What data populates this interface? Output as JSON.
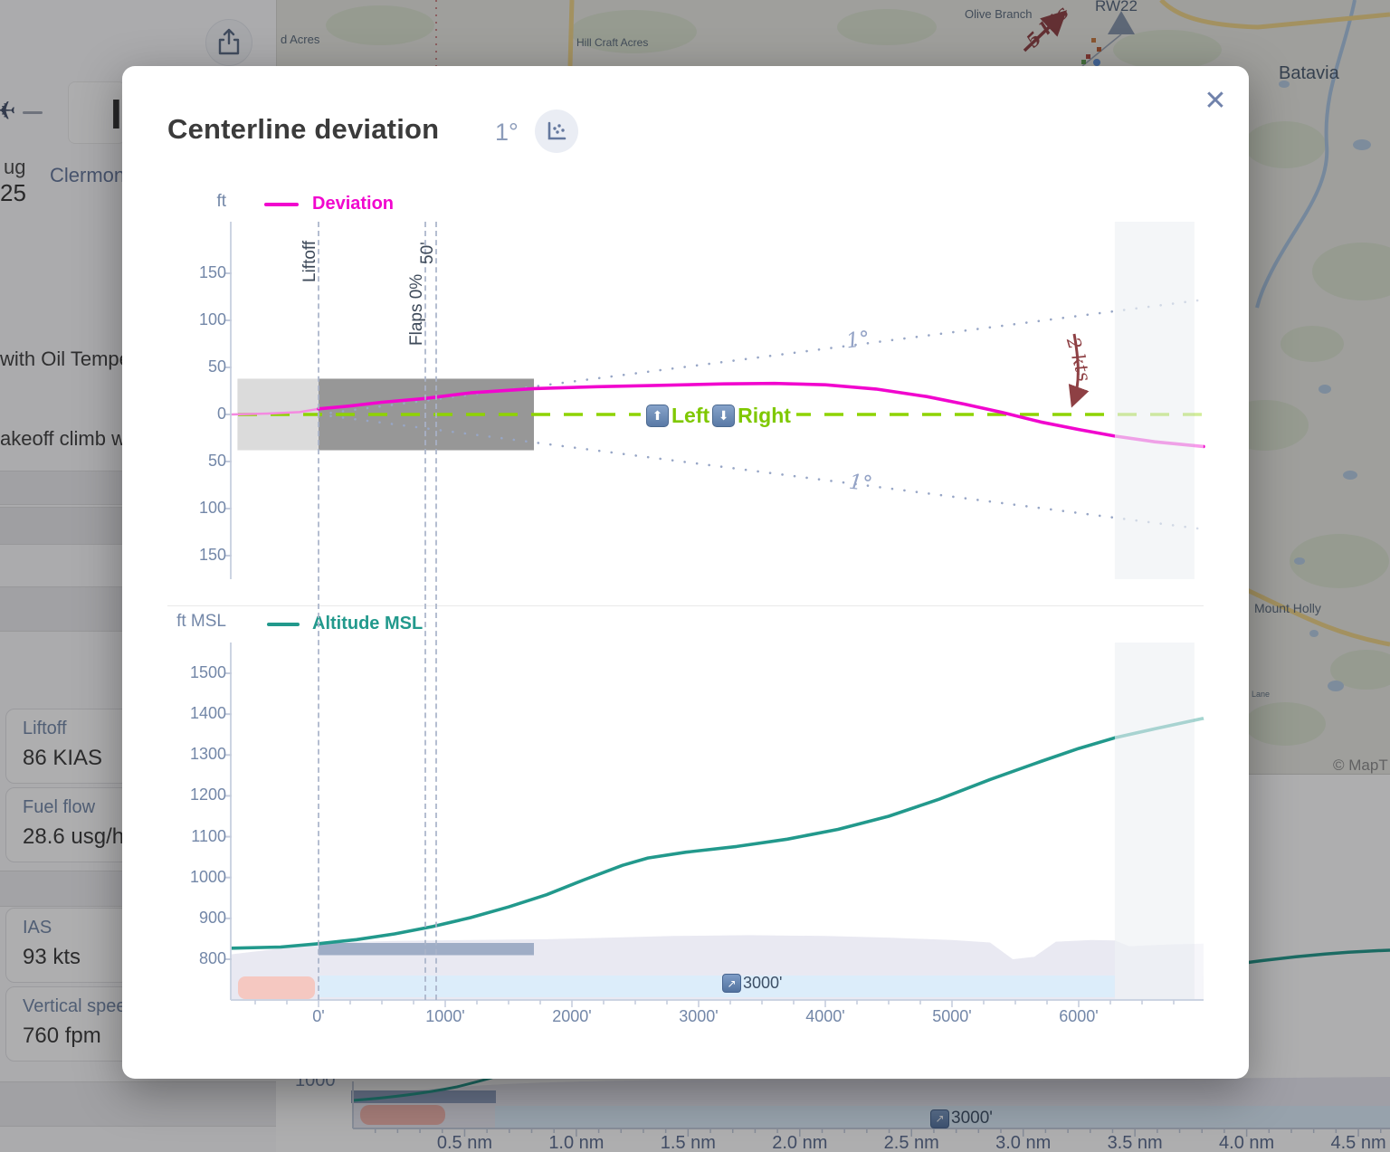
{
  "icons": {
    "close": "✕",
    "up": "⬆",
    "down": "⬇",
    "ne": "↗",
    "plane": "✈",
    "share": "share-up-icon",
    "scatter": "scatter-plot-icon"
  },
  "modal": {
    "title": "Centerline deviation",
    "angle": "1°"
  },
  "chart_data": [
    {
      "id": "centerline-deviation",
      "type": "line",
      "title": "Deviation",
      "ylabel": "ft",
      "yticks": [
        "150",
        "100",
        "50",
        "0",
        "50",
        "100",
        "150"
      ],
      "ytick_values": [
        150,
        100,
        50,
        0,
        -50,
        -100,
        -150
      ],
      "ylim": [
        -175,
        205
      ],
      "xlim_ft": [
        -693,
        6985
      ],
      "grid": false,
      "legend_position": "top-left",
      "series": [
        {
          "name": "Deviation",
          "color": "#f106ce",
          "points": [
            [
              -693,
              0
            ],
            [
              -400,
              1
            ],
            [
              -150,
              2.5
            ],
            [
              0,
              6
            ],
            [
              250,
              9
            ],
            [
              500,
              13
            ],
            [
              843,
              17
            ],
            [
              1200,
              23
            ],
            [
              1700,
              27.5
            ],
            [
              2200,
              29.5
            ],
            [
              2700,
              31
            ],
            [
              3200,
              32.5
            ],
            [
              3600,
              33
            ],
            [
              4000,
              31.5
            ],
            [
              4400,
              27
            ],
            [
              4800,
              19
            ],
            [
              5100,
              11
            ],
            [
              5400,
              2
            ],
            [
              5700,
              -8
            ],
            [
              6000,
              -16
            ],
            [
              6285,
              -23
            ],
            [
              6600,
              -29
            ],
            [
              6985,
              -34
            ]
          ]
        }
      ],
      "centerline": {
        "color": "#8ed300",
        "left_label": "Left",
        "right_label": "Right"
      },
      "cone_deg": 1,
      "cone_label": "1°",
      "runway": {
        "start_ft": -640,
        "liftoff_ft": 0,
        "end_ft": 1700,
        "half_width_ft": 38
      },
      "markers": [
        {
          "label": "Liftoff",
          "x_ft": 0
        },
        {
          "label": "Flaps 0%",
          "x_ft": 843
        },
        {
          "label": "50'",
          "x_ft": 929
        }
      ],
      "wind_annotation": "2 kts",
      "fade_start_ft": 6285
    },
    {
      "id": "altitude-msl",
      "type": "line",
      "title": "Altitude MSL",
      "ylabel": "ft MSL",
      "yticks": [
        "1500",
        "1400",
        "1300",
        "1200",
        "1100",
        "1000",
        "900",
        "800"
      ],
      "ytick_values": [
        1500,
        1400,
        1300,
        1200,
        1100,
        1000,
        900,
        800
      ],
      "ylim": [
        702,
        1575
      ],
      "xticks": [
        "0'",
        "1000'",
        "2000'",
        "3000'",
        "4000'",
        "5000'",
        "6000'"
      ],
      "xtick_values": [
        0,
        1000,
        2000,
        3000,
        4000,
        5000,
        6000
      ],
      "series": [
        {
          "name": "Altitude MSL",
          "color": "#22998c",
          "points": [
            [
              -693,
              827
            ],
            [
              -300,
              830
            ],
            [
              0,
              838
            ],
            [
              300,
              848
            ],
            [
              600,
              862
            ],
            [
              900,
              880
            ],
            [
              1200,
              902
            ],
            [
              1500,
              928
            ],
            [
              1800,
              958
            ],
            [
              2100,
              995
            ],
            [
              2400,
              1030
            ],
            [
              2600,
              1048
            ],
            [
              2900,
              1062
            ],
            [
              3300,
              1076
            ],
            [
              3700,
              1094
            ],
            [
              4100,
              1118
            ],
            [
              4500,
              1150
            ],
            [
              4900,
              1192
            ],
            [
              5300,
              1240
            ],
            [
              5700,
              1284
            ],
            [
              6000,
              1316
            ],
            [
              6285,
              1342
            ],
            [
              6600,
              1364
            ],
            [
              6985,
              1390
            ]
          ]
        }
      ],
      "terrain": [
        [
          -693,
          812
        ],
        [
          -200,
          830
        ],
        [
          0,
          840
        ],
        [
          600,
          845
        ],
        [
          1200,
          847
        ],
        [
          1800,
          849
        ],
        [
          2300,
          853
        ],
        [
          2800,
          857
        ],
        [
          3400,
          859
        ],
        [
          4000,
          857
        ],
        [
          4500,
          853
        ],
        [
          5000,
          847
        ],
        [
          5300,
          841
        ],
        [
          5480,
          800
        ],
        [
          5650,
          806
        ],
        [
          5820,
          843
        ],
        [
          6100,
          847
        ],
        [
          6285,
          846
        ],
        [
          6400,
          832
        ],
        [
          6700,
          836
        ],
        [
          6985,
          838
        ]
      ],
      "runway_bar": {
        "start_ft": 0,
        "end_ft": 1700
      },
      "target_band": {
        "label": "3000'",
        "start_ft": 0,
        "end_ft": 6285
      },
      "fade_start_ft": 6285
    },
    {
      "id": "background-approach-strip",
      "type": "line",
      "xticks": [
        "0.5 nm",
        "1.0 nm",
        "1.5 nm",
        "2.0 nm",
        "2.5 nm",
        "3.0 nm",
        "3.5 nm",
        "4.0 nm",
        "4.5 nm"
      ],
      "partial_ytick": "1000",
      "target_band": {
        "label": "3000'"
      },
      "series": [
        {
          "name": "Altitude",
          "color": "#22998c"
        }
      ]
    }
  ],
  "left_panel": {
    "reg_partial": "I",
    "date_line1": "ug",
    "date_line2": "25",
    "airport_link": "Clermon",
    "note1": "with Oil Tempe",
    "note2": "akeoff climb w",
    "cards": [
      {
        "label": "Liftoff",
        "value": "86 KIAS"
      },
      {
        "label": "Fuel flow",
        "value": "28.6 usg/h"
      },
      {
        "label": "IAS",
        "value": "93 kts"
      },
      {
        "label": "Vertical speed",
        "value": "760 fpm"
      }
    ]
  },
  "map": {
    "labels": [
      "d Acres",
      "Hill Craft Acres",
      "Olive Branch",
      "RW22",
      "Batavia",
      "Mount Holly",
      "Lane",
      "© MapT"
    ],
    "wind": "5 kts"
  }
}
